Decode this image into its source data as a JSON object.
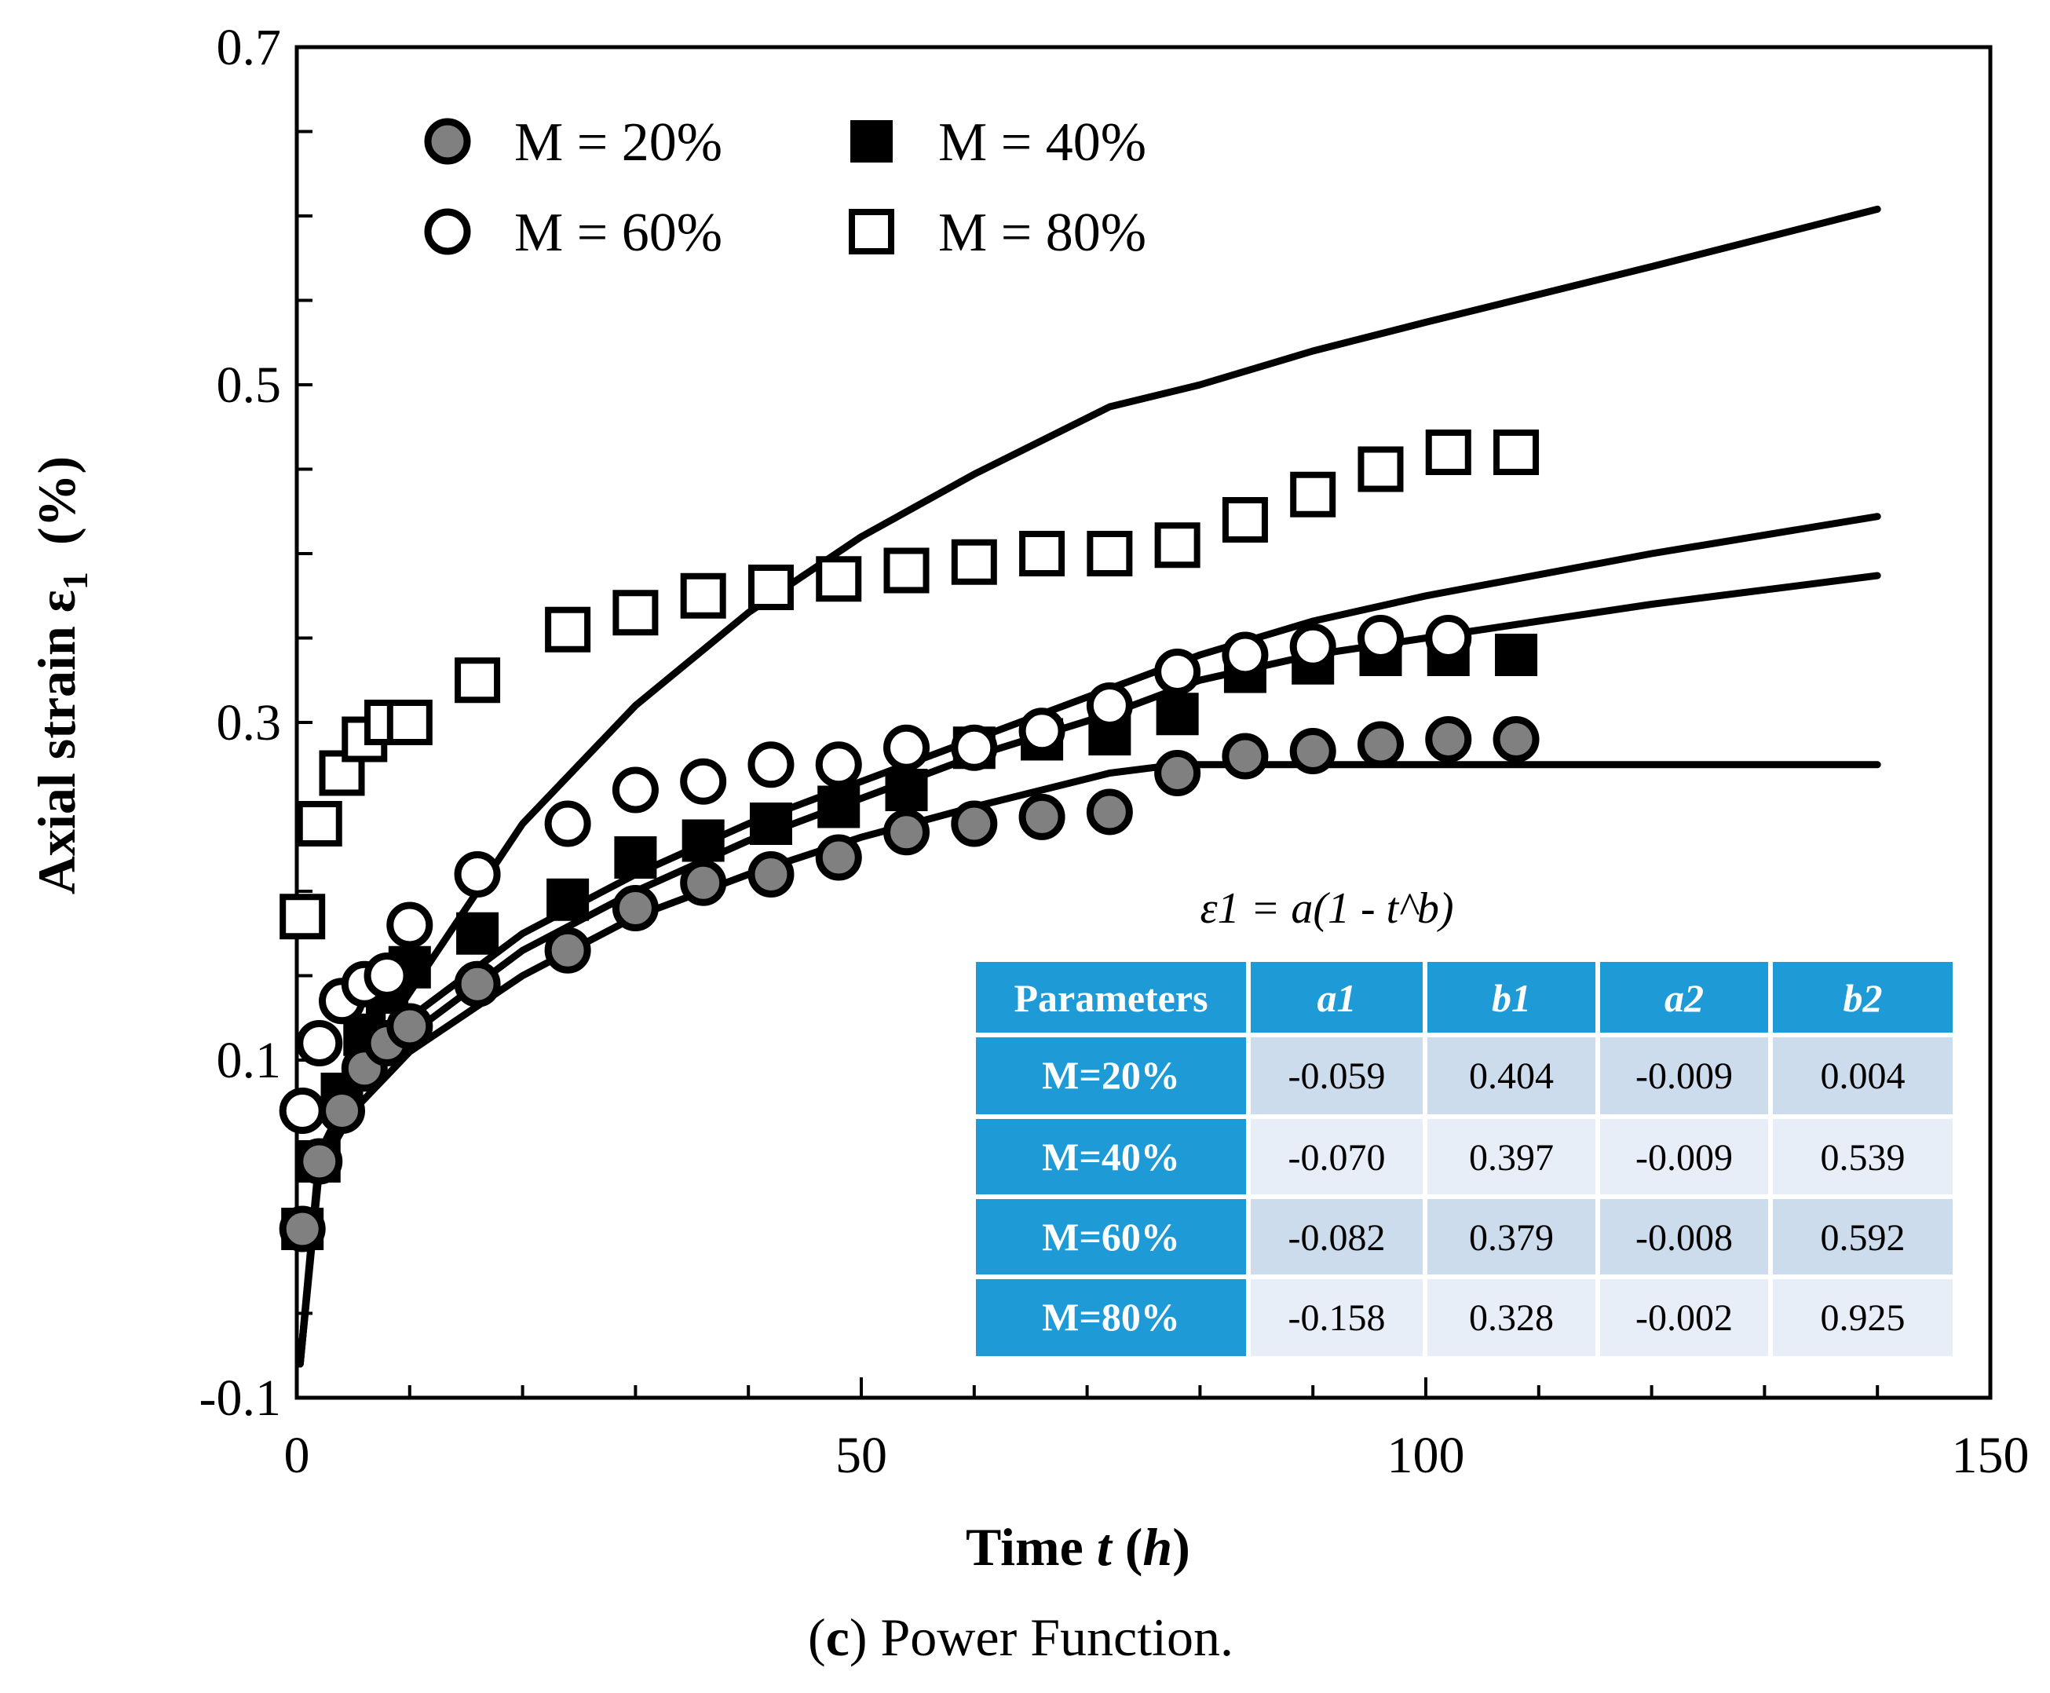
{
  "chart_data": {
    "type": "scatter",
    "title": "",
    "xlabel": "Time t (h)",
    "ylabel": "Axial strain ε1 (%)",
    "xlim": [
      0,
      150
    ],
    "ylim": [
      -0.1,
      0.7
    ],
    "xticks": [
      0,
      50,
      100,
      150
    ],
    "yticks": [
      -0.1,
      0.1,
      0.3,
      0.5,
      0.7
    ],
    "grid": false,
    "legend_position": "top-left",
    "series": [
      {
        "name": "M = 20%",
        "marker": "gray-circle",
        "x": [
          0.5,
          2,
          4,
          6,
          8,
          10,
          16,
          24,
          30,
          36,
          42,
          48,
          54,
          60,
          66,
          72,
          78,
          84,
          90,
          96,
          102,
          108
        ],
        "y": [
          0.0,
          0.04,
          0.07,
          0.095,
          0.11,
          0.12,
          0.145,
          0.165,
          0.19,
          0.205,
          0.21,
          0.22,
          0.235,
          0.24,
          0.244,
          0.247,
          0.27,
          0.28,
          0.283,
          0.287,
          0.29,
          0.29
        ]
      },
      {
        "name": "M = 40%",
        "marker": "black-square",
        "x": [
          0.5,
          2,
          4,
          6,
          8,
          10,
          16,
          24,
          30,
          36,
          42,
          48,
          54,
          60,
          66,
          72,
          78,
          84,
          90,
          96,
          102,
          108
        ],
        "y": [
          0.0,
          0.04,
          0.08,
          0.115,
          0.14,
          0.155,
          0.175,
          0.195,
          0.22,
          0.23,
          0.24,
          0.25,
          0.26,
          0.285,
          0.29,
          0.293,
          0.305,
          0.33,
          0.335,
          0.34,
          0.34,
          0.34
        ]
      },
      {
        "name": "M = 60%",
        "marker": "open-circle",
        "x": [
          0.5,
          2,
          4,
          6,
          8,
          10,
          16,
          24,
          30,
          36,
          42,
          48,
          54,
          60,
          66,
          72,
          78,
          84,
          90,
          96,
          102
        ],
        "y": [
          0.07,
          0.11,
          0.135,
          0.145,
          0.15,
          0.18,
          0.21,
          0.24,
          0.26,
          0.265,
          0.275,
          0.275,
          0.285,
          0.285,
          0.295,
          0.31,
          0.33,
          0.34,
          0.345,
          0.35,
          0.35
        ]
      },
      {
        "name": "M = 80%",
        "marker": "open-square",
        "x": [
          0.5,
          2,
          4,
          6,
          8,
          10,
          16,
          24,
          30,
          36,
          42,
          48,
          54,
          60,
          66,
          72,
          78,
          84,
          90,
          96,
          102,
          108
        ],
        "y": [
          0.185,
          0.24,
          0.27,
          0.29,
          0.3,
          0.3,
          0.325,
          0.355,
          0.365,
          0.375,
          0.38,
          0.385,
          0.39,
          0.395,
          0.4,
          0.4,
          0.405,
          0.42,
          0.435,
          0.45,
          0.46,
          0.46
        ]
      }
    ],
    "fit_curves": [
      {
        "name": "M = 20% fit",
        "x": [
          0.3,
          2,
          5,
          10,
          20,
          30,
          40,
          50,
          60,
          72,
          78,
          90,
          100,
          120,
          140
        ],
        "y": [
          -0.08,
          0.035,
          0.07,
          0.105,
          0.15,
          0.185,
          0.21,
          0.232,
          0.25,
          0.27,
          0.275,
          0.275,
          0.275,
          0.275,
          0.275
        ]
      },
      {
        "name": "M = 40% fit",
        "x": [
          0.3,
          2,
          5,
          10,
          20,
          30,
          40,
          50,
          60,
          72,
          80,
          90,
          100,
          120,
          140
        ],
        "y": [
          -0.08,
          0.04,
          0.08,
          0.115,
          0.165,
          0.2,
          0.23,
          0.255,
          0.28,
          0.305,
          0.325,
          0.34,
          0.35,
          0.37,
          0.387
        ]
      },
      {
        "name": "M = 60% fit",
        "x": [
          0.3,
          2,
          5,
          10,
          20,
          30,
          40,
          50,
          60,
          72,
          80,
          90,
          100,
          120,
          140
        ],
        "y": [
          -0.08,
          0.045,
          0.085,
          0.125,
          0.175,
          0.21,
          0.24,
          0.265,
          0.29,
          0.32,
          0.34,
          0.36,
          0.375,
          0.4,
          0.422
        ]
      },
      {
        "name": "M = 80% fit",
        "x": [
          0.3,
          2,
          5,
          10,
          20,
          30,
          40,
          50,
          60,
          72,
          80,
          90,
          100,
          120,
          140
        ],
        "y": [
          -0.08,
          0.04,
          0.09,
          0.14,
          0.24,
          0.31,
          0.365,
          0.41,
          0.447,
          0.487,
          0.5,
          0.52,
          0.537,
          0.57,
          0.604
        ]
      }
    ],
    "inset": {
      "equation": "ε1 = a(1 - t^b)",
      "headers": [
        "Parameters",
        "a1",
        "b1",
        "a2",
        "b2"
      ],
      "rows": [
        [
          "M=20%",
          "-0.059",
          "0.404",
          "-0.009",
          "0.004"
        ],
        [
          "M=40%",
          "-0.070",
          "0.397",
          "-0.009",
          "0.539"
        ],
        [
          "M=60%",
          "-0.082",
          "0.379",
          "-0.008",
          "0.592"
        ],
        [
          "M=80%",
          "-0.158",
          "0.328",
          "-0.002",
          "0.925"
        ]
      ]
    },
    "caption": {
      "label": "c",
      "text": " Power Function."
    }
  },
  "colors": {
    "table_header": "#1e9ad6",
    "table_row_a": "#ccdcec",
    "table_row_b": "#e8eef7",
    "gray_marker": "#808080"
  }
}
